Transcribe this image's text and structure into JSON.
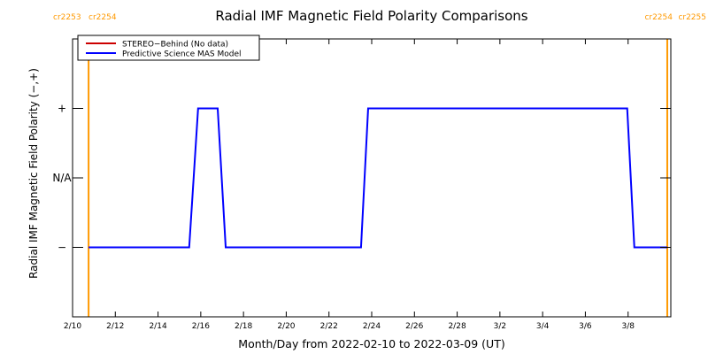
{
  "chart_data": {
    "type": "line",
    "title": "Radial IMF Magnetic Field Polarity Comparisons",
    "xlabel": "Month/Day from 2022-02-10 to 2022-03-09 (UT)",
    "ylabel": "Radial IMF Magnetic Field Polarity (−,+)",
    "x_start": "2022-02-10",
    "x_end": "2022-03-10",
    "x_ticks": [
      {
        "date": "2022-02-10",
        "label": "2/10"
      },
      {
        "date": "2022-02-12",
        "label": "2/12"
      },
      {
        "date": "2022-02-14",
        "label": "2/14"
      },
      {
        "date": "2022-02-16",
        "label": "2/16"
      },
      {
        "date": "2022-02-18",
        "label": "2/18"
      },
      {
        "date": "2022-02-20",
        "label": "2/20"
      },
      {
        "date": "2022-02-22",
        "label": "2/22"
      },
      {
        "date": "2022-02-24",
        "label": "2/24"
      },
      {
        "date": "2022-02-26",
        "label": "2/26"
      },
      {
        "date": "2022-02-28",
        "label": "2/28"
      },
      {
        "date": "2022-03-02",
        "label": "3/2"
      },
      {
        "date": "2022-03-04",
        "label": "3/4"
      },
      {
        "date": "2022-03-06",
        "label": "3/6"
      },
      {
        "date": "2022-03-08",
        "label": "3/8"
      }
    ],
    "y_ticks": [
      {
        "value": 1,
        "label": "+"
      },
      {
        "value": 0,
        "label": "N/A"
      },
      {
        "value": -1,
        "label": "−"
      }
    ],
    "ylim": [
      -2,
      2
    ],
    "rotations": [
      {
        "date": "2022-02-10T18:00",
        "left_label": "cr2253",
        "right_label": "cr2254",
        "label_side": "top-left"
      },
      {
        "date": "2022-03-09T20:00",
        "left_label": "cr2254",
        "right_label": "cr2255",
        "label_side": "top-right"
      }
    ],
    "rotation_color": "#ff9900",
    "legend": {
      "placement": "top-left"
    },
    "series": [
      {
        "name": "STEREO−Behind (No data)",
        "color": "#cc0000",
        "points": []
      },
      {
        "name": "Predictive Science MAS Model",
        "color": "#0000ff",
        "points": [
          [
            "2022-02-10T18:00",
            -1
          ],
          [
            "2022-02-15T11:00",
            -1
          ],
          [
            "2022-02-15T21:00",
            1
          ],
          [
            "2022-02-16T19:00",
            1
          ],
          [
            "2022-02-17T04:00",
            -1
          ],
          [
            "2022-02-23T12:00",
            -1
          ],
          [
            "2022-02-23T20:00",
            1
          ],
          [
            "2022-03-07T23:00",
            1
          ],
          [
            "2022-03-08T07:00",
            -1
          ],
          [
            "2022-03-09T20:00",
            -1
          ]
        ]
      }
    ]
  }
}
